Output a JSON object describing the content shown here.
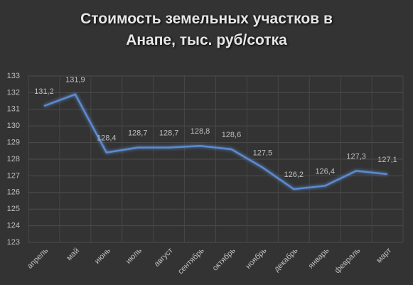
{
  "chart_data": {
    "type": "line",
    "title": "Стоимость земельных участков в Анапе, тыс. руб/сотка",
    "categories": [
      "апрель",
      "май",
      "июнь",
      "июль",
      "август",
      "сентябрь",
      "октябрь",
      "ноябрь",
      "декабрь",
      "январь",
      "февраль",
      "март"
    ],
    "values": [
      131.2,
      131.9,
      128.4,
      128.7,
      128.7,
      128.8,
      128.6,
      127.5,
      126.2,
      126.4,
      127.3,
      127.1
    ],
    "value_labels": [
      "131,2",
      "131,9",
      "128,4",
      "128,7",
      "128,7",
      "128,8",
      "128,6",
      "127,5",
      "126,2",
      "126,4",
      "127,3",
      "127,1"
    ],
    "color": "#5b8bd0",
    "ylim": [
      123,
      133
    ],
    "yticks": [
      123,
      124,
      125,
      126,
      127,
      128,
      129,
      130,
      131,
      132,
      133
    ],
    "grid": true
  }
}
